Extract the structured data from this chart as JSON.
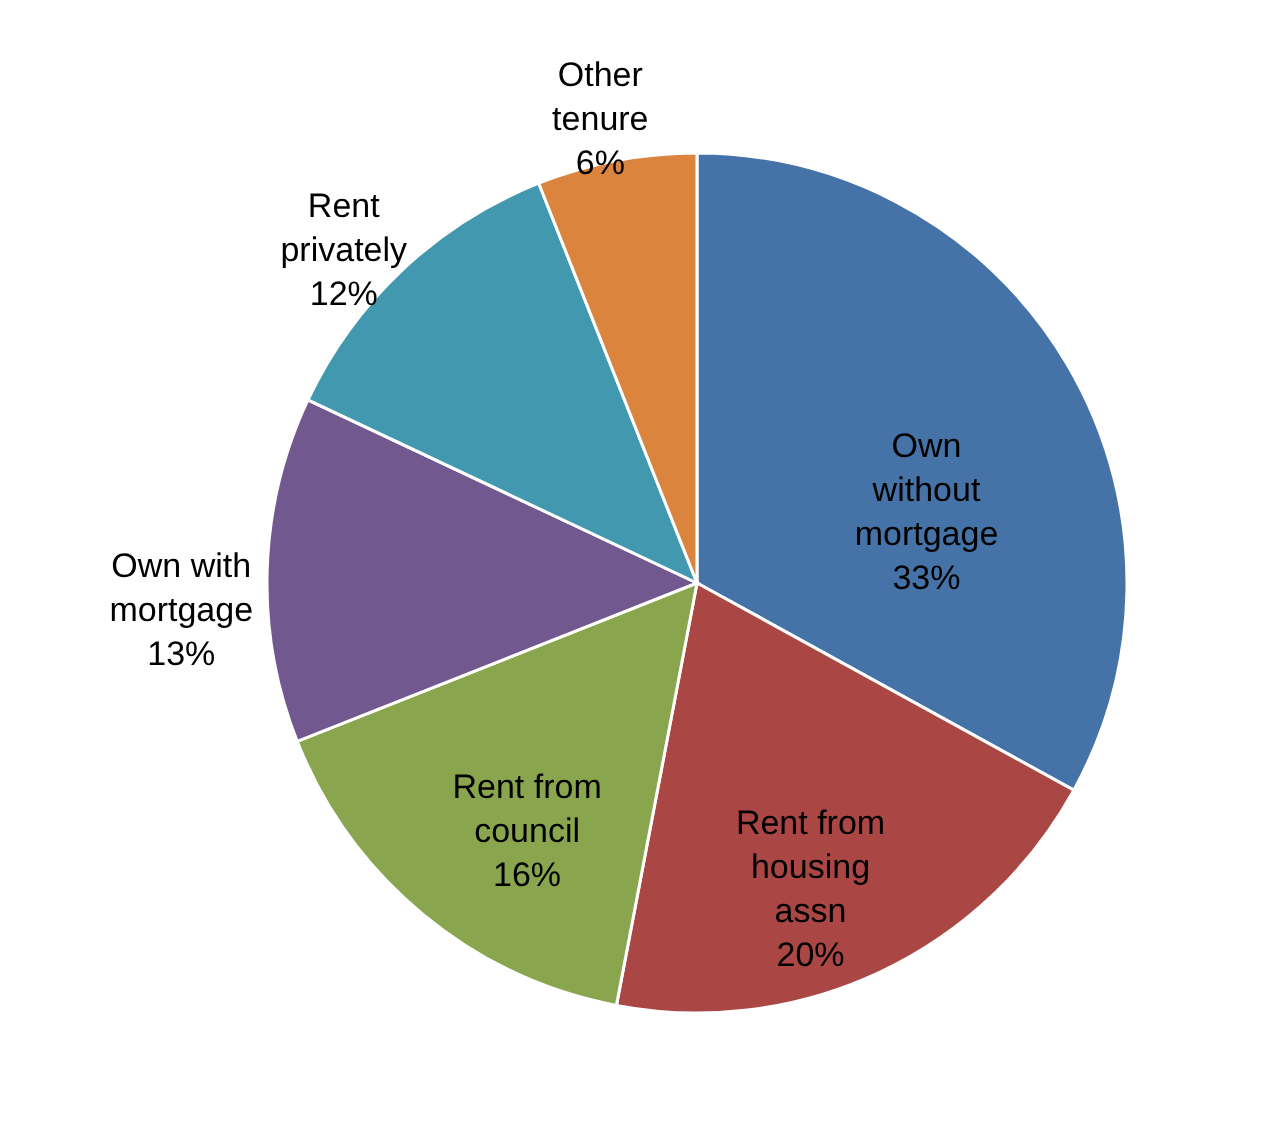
{
  "chart_data": {
    "type": "pie",
    "categories": [
      "Own without mortgage",
      "Rent from housing assn",
      "Rent from council",
      "Own with mortgage",
      "Rent privately",
      "Other tenure"
    ],
    "values": [
      33,
      20,
      16,
      13,
      12,
      6
    ],
    "value_labels": [
      "33%",
      "20%",
      "16%",
      "13%",
      "12%",
      "6%"
    ],
    "colors": [
      "#4572a7",
      "#aa4643",
      "#89a54e",
      "#71588f",
      "#4198af",
      "#db843d"
    ]
  }
}
